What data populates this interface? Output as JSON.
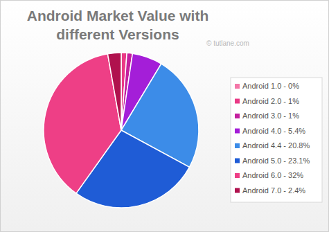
{
  "chart_data": {
    "type": "pie",
    "title": "Android Market Value with different Versions",
    "annotations": [
      "© tutlane.com"
    ],
    "categories": [
      "Android 1.0 - 0%",
      "Android 2.0 - 1%",
      "Android 3.0 - 1%",
      "Android 4.0 - 5.4%",
      "Android 4.4 - 20.8%",
      "Android 5.0 - 23.1%",
      "Android 6.0 - 32%",
      "Android 7.0 - 2.4%"
    ],
    "values": [
      0,
      1,
      1,
      5.4,
      20.8,
      23.1,
      32,
      2.4
    ],
    "colors": [
      "#f477a8",
      "#ea3a86",
      "#c4209e",
      "#a41ed8",
      "#3c8ce8",
      "#1f5cd6",
      "#ee3f86",
      "#b0124e"
    ],
    "legend": "right"
  }
}
